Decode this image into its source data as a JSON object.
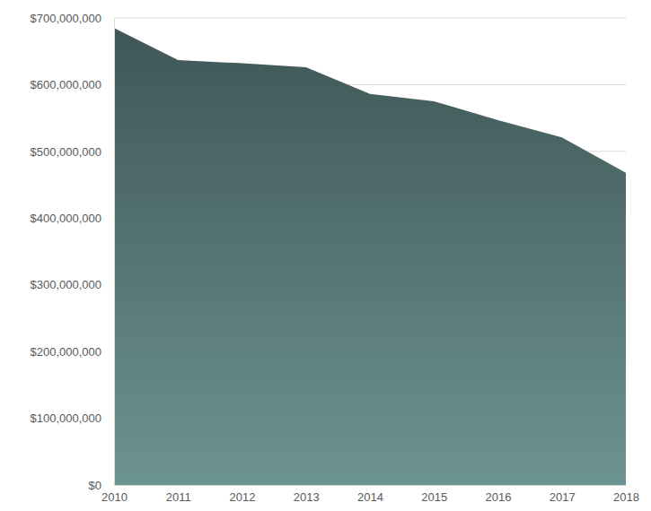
{
  "chart_data": {
    "type": "area",
    "x": [
      2010,
      2011,
      2012,
      2013,
      2014,
      2015,
      2016,
      2017,
      2018
    ],
    "values": [
      685000000,
      637000000,
      632000000,
      626000000,
      586000000,
      575000000,
      547000000,
      521000000,
      468000000
    ],
    "color": "#4e6b6a",
    "xlim": [
      2010,
      2018
    ],
    "xticks": [
      2010,
      2011,
      2012,
      2013,
      2014,
      2015,
      2016,
      2017,
      2018
    ],
    "ylim": [
      0,
      700000000
    ],
    "yticks": [
      {
        "value": 0,
        "label": "$0"
      },
      {
        "value": 100000000,
        "label": "$100,000,000"
      },
      {
        "value": 200000000,
        "label": "$200,000,000"
      },
      {
        "value": 300000000,
        "label": "$300,000,000"
      },
      {
        "value": 400000000,
        "label": "$400,000,000"
      },
      {
        "value": 500000000,
        "label": "$500,000,000"
      },
      {
        "value": 600000000,
        "label": "$600,000,000"
      },
      {
        "value": 700000000,
        "label": "$700,000,000"
      }
    ],
    "grid": true
  }
}
